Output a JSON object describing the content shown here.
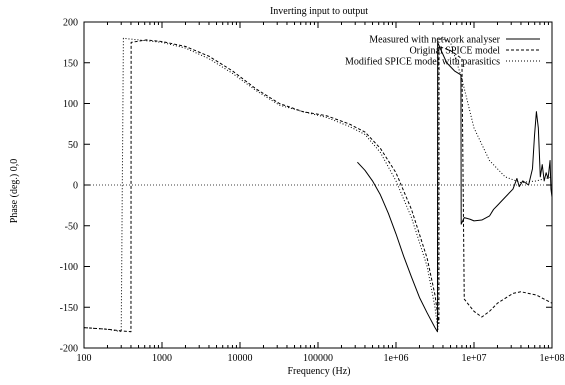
{
  "chart_data": {
    "type": "line",
    "title": "Inverting input to output",
    "xlabel": "Frequency (Hz)",
    "ylabel": "Phase (deg.) 0,0",
    "x_scale": "log",
    "xlim": [
      100,
      100000000
    ],
    "ylim": [
      -200,
      200
    ],
    "grid": false,
    "legend_position": "top-right",
    "x_ticks": [
      {
        "value": 100,
        "label": "100"
      },
      {
        "value": 1000,
        "label": "1000"
      },
      {
        "value": 10000,
        "label": "10000"
      },
      {
        "value": 100000,
        "label": "100000"
      },
      {
        "value": 1000000,
        "label": "1e+06"
      },
      {
        "value": 10000000,
        "label": "1e+07"
      },
      {
        "value": 100000000,
        "label": "1e+08"
      }
    ],
    "y_ticks": [
      {
        "value": 200,
        "label": "200"
      },
      {
        "value": 150,
        "label": "150"
      },
      {
        "value": 100,
        "label": "100"
      },
      {
        "value": 50,
        "label": "50"
      },
      {
        "value": 0,
        "label": "0"
      },
      {
        "value": -50,
        "label": "-50"
      },
      {
        "value": -100,
        "label": "-100"
      },
      {
        "value": -150,
        "label": "-150"
      },
      {
        "value": -200,
        "label": "-200"
      }
    ],
    "reference_line": {
      "y": 0,
      "style": "dotted"
    },
    "series": [
      {
        "name": "Measured with network analyser",
        "style": "solid",
        "points": [
          [
            320000,
            28
          ],
          [
            400000,
            18
          ],
          [
            500000,
            5
          ],
          [
            630000,
            -12
          ],
          [
            800000,
            -35
          ],
          [
            1000000,
            -60
          ],
          [
            1260000,
            -88
          ],
          [
            1580000,
            -113
          ],
          [
            2000000,
            -138
          ],
          [
            2510000,
            -157
          ],
          [
            3160000,
            -175
          ],
          [
            3400000,
            -180
          ],
          [
            3420000,
            175
          ],
          [
            3800000,
            165
          ],
          [
            4470000,
            150
          ],
          [
            5620000,
            140
          ],
          [
            6800000,
            135
          ],
          [
            6850000,
            -48
          ],
          [
            7500000,
            -40
          ],
          [
            8910000,
            -42
          ],
          [
            10000000,
            -44
          ],
          [
            12600000,
            -43
          ],
          [
            15800000,
            -38
          ],
          [
            17800000,
            -30
          ],
          [
            20000000,
            -25
          ],
          [
            25100000,
            -15
          ],
          [
            31600000,
            -5
          ],
          [
            35500000,
            8
          ],
          [
            38000000,
            -2
          ],
          [
            42200000,
            5
          ],
          [
            50100000,
            0
          ],
          [
            56200000,
            20
          ],
          [
            59600000,
            60
          ],
          [
            63100000,
            90
          ],
          [
            66800000,
            70
          ],
          [
            70800000,
            10
          ],
          [
            75000000,
            25
          ],
          [
            79400000,
            5
          ],
          [
            84100000,
            15
          ],
          [
            89100000,
            8
          ],
          [
            94400000,
            30
          ],
          [
            97000000,
            -5
          ],
          [
            100000000,
            -15
          ]
        ]
      },
      {
        "name": "Original SPICE model",
        "style": "dashed",
        "points": [
          [
            100,
            -175
          ],
          [
            200,
            -177
          ],
          [
            300,
            -179
          ],
          [
            400,
            -180
          ],
          [
            402,
            175
          ],
          [
            630,
            178
          ],
          [
            1000,
            176
          ],
          [
            2000,
            170
          ],
          [
            4000,
            158
          ],
          [
            8000,
            140
          ],
          [
            16000,
            118
          ],
          [
            32000,
            100
          ],
          [
            64000,
            90
          ],
          [
            128000,
            85
          ],
          [
            250000,
            75
          ],
          [
            400000,
            65
          ],
          [
            630000,
            45
          ],
          [
            1000000,
            15
          ],
          [
            1580000,
            -30
          ],
          [
            2510000,
            -90
          ],
          [
            3160000,
            -135
          ],
          [
            3550000,
            -170
          ],
          [
            3560000,
            170
          ],
          [
            5000000,
            165
          ],
          [
            7000000,
            155
          ],
          [
            7500000,
            -140
          ],
          [
            10000000,
            -155
          ],
          [
            12600000,
            -162
          ],
          [
            15800000,
            -155
          ],
          [
            20000000,
            -145
          ],
          [
            31600000,
            -133
          ],
          [
            39800000,
            -131
          ],
          [
            63100000,
            -135
          ],
          [
            100000000,
            -145
          ]
        ]
      },
      {
        "name": "Modified SPICE model with parasitics",
        "style": "dotted",
        "points": [
          [
            100,
            -175
          ],
          [
            200,
            -177
          ],
          [
            300,
            -180
          ],
          [
            320,
            180
          ],
          [
            400,
            179
          ],
          [
            630,
            177
          ],
          [
            1000,
            175
          ],
          [
            2000,
            168
          ],
          [
            4000,
            155
          ],
          [
            8000,
            137
          ],
          [
            16000,
            116
          ],
          [
            32000,
            98
          ],
          [
            64000,
            90
          ],
          [
            128000,
            83
          ],
          [
            250000,
            72
          ],
          [
            400000,
            62
          ],
          [
            630000,
            40
          ],
          [
            1000000,
            5
          ],
          [
            1580000,
            -40
          ],
          [
            2510000,
            -100
          ],
          [
            3160000,
            -150
          ],
          [
            3450000,
            -178
          ],
          [
            3460000,
            180
          ],
          [
            4000000,
            179
          ],
          [
            5000000,
            175
          ],
          [
            7000000,
            130
          ],
          [
            10000000,
            70
          ],
          [
            15800000,
            30
          ],
          [
            25100000,
            10
          ],
          [
            39800000,
            3
          ],
          [
            63100000,
            5
          ],
          [
            100000000,
            10
          ]
        ]
      }
    ]
  }
}
